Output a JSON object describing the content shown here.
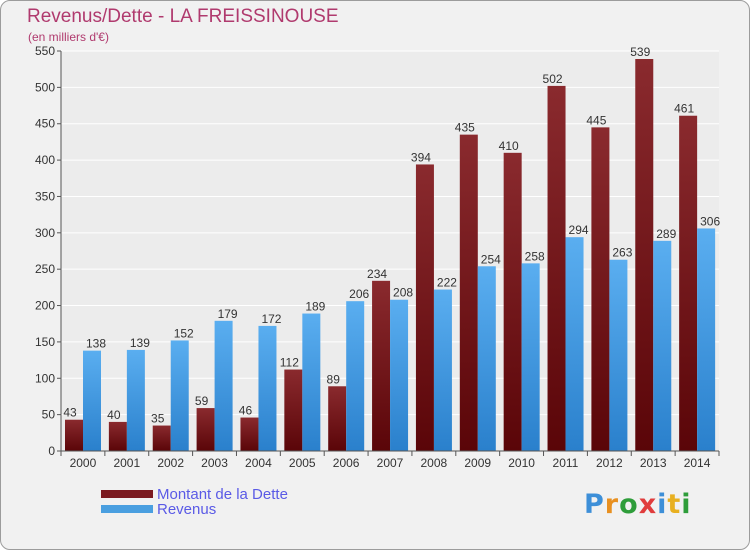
{
  "title": "Revenus/Dette - LA FREISSINOUSE",
  "subtitle": "(en milliers d'€)",
  "legend": {
    "items": [
      {
        "label": "Montant de la Dette",
        "color": "#7b1a20"
      },
      {
        "label": "Revenus",
        "color": "#4a9fe0"
      }
    ]
  },
  "logo": {
    "text": "Proxiti",
    "letter_colors": [
      "#3d8fd8",
      "#e89020",
      "#2e9d3a",
      "#e03c3c",
      "#3d8fd8",
      "#e8b020",
      "#2e9d3a"
    ]
  },
  "colors": {
    "dette_top": "#8a2a2e",
    "dette_bottom": "#5a0508",
    "revenus_top": "#5aaef0",
    "revenus_bottom": "#2a80cc",
    "grid": "#ffffff"
  },
  "chart_data": {
    "type": "bar",
    "categories": [
      "2000",
      "2001",
      "2002",
      "2003",
      "2004",
      "2005",
      "2006",
      "2007",
      "2008",
      "2009",
      "2010",
      "2011",
      "2012",
      "2013",
      "2014"
    ],
    "series": [
      {
        "name": "Montant de la Dette",
        "values": [
          43,
          40,
          35,
          59,
          46,
          112,
          89,
          234,
          394,
          435,
          410,
          502,
          445,
          539,
          461
        ]
      },
      {
        "name": "Revenus",
        "values": [
          138,
          139,
          152,
          179,
          172,
          189,
          206,
          208,
          222,
          254,
          258,
          294,
          263,
          289,
          306
        ]
      }
    ],
    "ylim": [
      0,
      550
    ],
    "yticks": [
      0,
      50,
      100,
      150,
      200,
      250,
      300,
      350,
      400,
      450,
      500,
      550
    ],
    "grid": true,
    "legend_position": "bottom-left"
  }
}
